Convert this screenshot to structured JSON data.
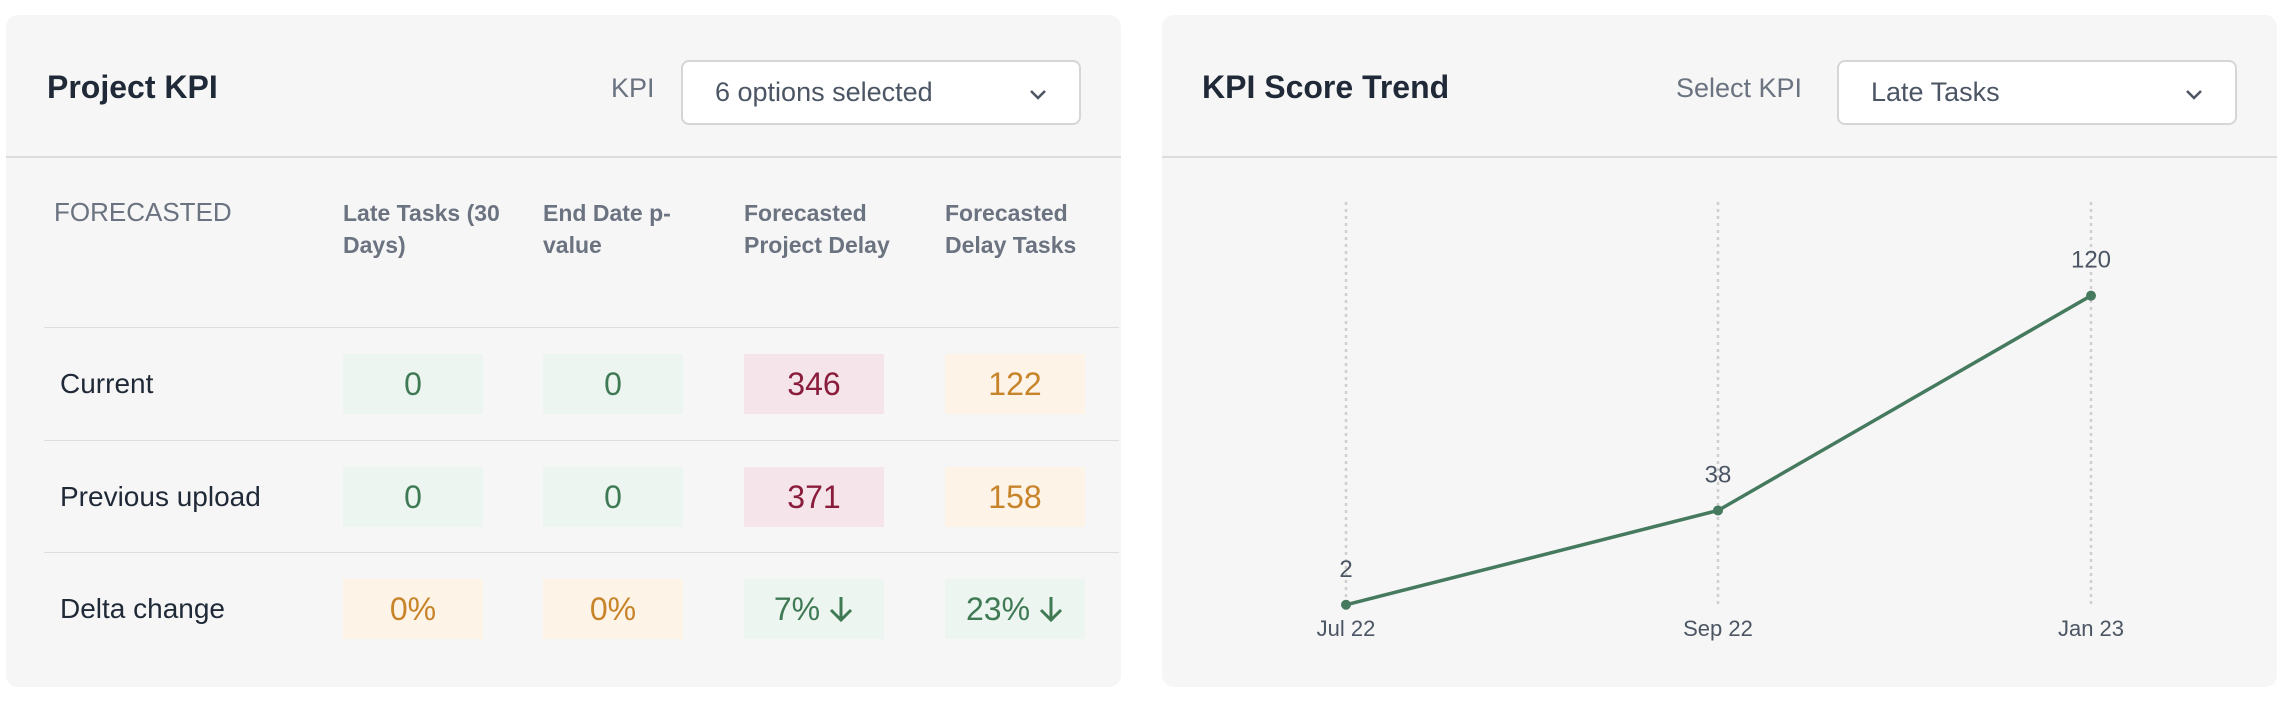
{
  "left": {
    "title": "Project KPI",
    "filter_label": "KPI",
    "filter_value": "6 options selected",
    "table": {
      "corner": "FORECASTED",
      "columns": [
        "Late Tasks (30 Days)",
        "End Date p-value",
        "Forecasted Project Delay",
        "Forecasted Delay Tasks"
      ],
      "rows": [
        {
          "label": "Current",
          "cells": [
            "0",
            "0",
            "346",
            "122"
          ]
        },
        {
          "label": "Previous upload",
          "cells": [
            "0",
            "0",
            "371",
            "158"
          ]
        },
        {
          "label": "Delta change",
          "cells": [
            "0%",
            "0%",
            "7%",
            "23%"
          ]
        }
      ]
    }
  },
  "right": {
    "title": "KPI Score Trend",
    "filter_label": "Select KPI",
    "filter_value": "Late Tasks"
  },
  "chart_data": {
    "type": "line",
    "categories": [
      "Jul 22",
      "Sep 22",
      "Jan 23"
    ],
    "series": [
      {
        "color": "#467a5e",
        "values": [
          2,
          38,
          120
        ]
      }
    ],
    "ylim": [
      0,
      155
    ]
  }
}
